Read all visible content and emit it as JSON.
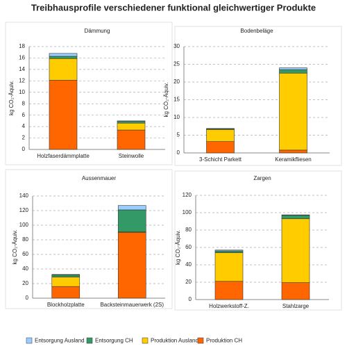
{
  "title": "Treibhausprofile verschiedener funktional gleichwertiger Produkte",
  "chart_data": [
    {
      "type": "stacked_bar",
      "title": "Dämmung",
      "ylabel": "kg CO₂-Äquiv.",
      "categories": [
        "Holzfaserdämmplatte",
        "Steinwolle"
      ],
      "ylim": [
        0,
        18
      ],
      "yticks": [
        0,
        2,
        4,
        6,
        8,
        10,
        12,
        14,
        16,
        18
      ],
      "grid": true,
      "series": [
        {
          "name": "Entsorgung Ausland",
          "color": "#99ccff",
          "values": [
            0.5,
            0.1
          ]
        },
        {
          "name": "Entsorgung CH",
          "color": "#339966",
          "values": [
            0.4,
            0.3
          ]
        },
        {
          "name": "Produktion Ausland",
          "color": "#ffcc00",
          "values": [
            3.8,
            1.2
          ]
        },
        {
          "name": "Produktion CH",
          "color": "#ff6600",
          "values": [
            12.1,
            3.4
          ]
        }
      ]
    },
    {
      "type": "stacked_bar",
      "title": "Bodenbeläge",
      "ylabel": "kg CO₂-Äquiv.",
      "categories": [
        "3-Schicht Parkett",
        "Keramikfliesen"
      ],
      "ylim": [
        0,
        30
      ],
      "yticks": [
        0,
        5,
        10,
        15,
        20,
        25,
        30
      ],
      "grid": true,
      "series": [
        {
          "name": "Entsorgung Ausland",
          "color": "#99ccff",
          "values": [
            0.1,
            0.5
          ]
        },
        {
          "name": "Entsorgung CH",
          "color": "#339966",
          "values": [
            0.2,
            1.0
          ]
        },
        {
          "name": "Produktion Ausland",
          "color": "#ffcc00",
          "values": [
            3.4,
            21.7
          ]
        },
        {
          "name": "Produktion CH",
          "color": "#ff6600",
          "values": [
            3.2,
            0.8
          ]
        }
      ]
    },
    {
      "type": "stacked_bar",
      "title": "Aussenmauer",
      "ylabel": "kg CO₂-Äquiv.",
      "categories": [
        "Blockholzplatte",
        "Backsteinmauerwerk (2S)"
      ],
      "ylim": [
        0,
        140
      ],
      "yticks": [
        0,
        20,
        40,
        60,
        80,
        100,
        120,
        140
      ],
      "grid": true,
      "series": [
        {
          "name": "Entsorgung Ausland",
          "color": "#99ccff",
          "values": [
            0.5,
            6
          ]
        },
        {
          "name": "Entsorgung CH",
          "color": "#339966",
          "values": [
            3,
            30
          ]
        },
        {
          "name": "Produktion Ausland",
          "color": "#ffcc00",
          "values": [
            13,
            1
          ]
        },
        {
          "name": "Produktion CH",
          "color": "#ff6600",
          "values": [
            16,
            90
          ]
        }
      ]
    },
    {
      "type": "stacked_bar",
      "title": "Zargen",
      "ylabel": "kg CO₂-Äquiv.",
      "categories": [
        "Holzwerkstoff-Z.",
        "Stahlzarge"
      ],
      "ylim": [
        0,
        120
      ],
      "yticks": [
        0,
        20,
        40,
        60,
        80,
        100,
        120
      ],
      "grid": true,
      "series": [
        {
          "name": "Entsorgung Ausland",
          "color": "#99ccff",
          "values": [
            1,
            0.5
          ]
        },
        {
          "name": "Entsorgung CH",
          "color": "#339966",
          "values": [
            2,
            4
          ]
        },
        {
          "name": "Produktion Ausland",
          "color": "#ffcc00",
          "values": [
            33,
            73.5
          ]
        },
        {
          "name": "Produktion CH",
          "color": "#ff6600",
          "values": [
            21,
            19.5
          ]
        }
      ]
    }
  ]
}
